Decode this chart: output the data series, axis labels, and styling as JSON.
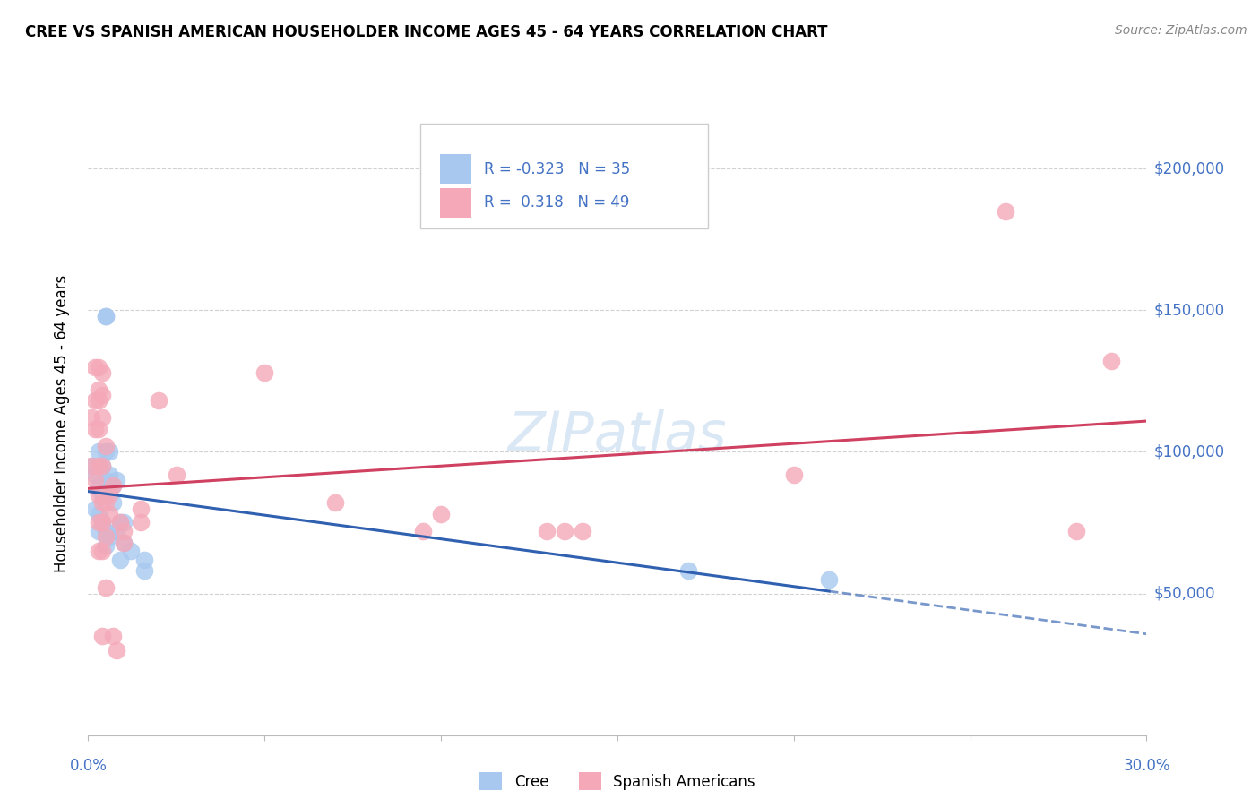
{
  "title": "CREE VS SPANISH AMERICAN HOUSEHOLDER INCOME AGES 45 - 64 YEARS CORRELATION CHART",
  "source": "Source: ZipAtlas.com",
  "ylabel": "Householder Income Ages 45 - 64 years",
  "xlim": [
    0.0,
    0.3
  ],
  "ylim": [
    0,
    220000
  ],
  "yticks": [
    50000,
    100000,
    150000,
    200000
  ],
  "ytick_labels": [
    "$50,000",
    "$100,000",
    "$150,000",
    "$200,000"
  ],
  "cree_color": "#A8C8F0",
  "spanish_color": "#F4A8B8",
  "cree_line_color": "#3060B0",
  "spanish_line_color": "#D04060",
  "cree_points": [
    [
      0.001,
      95000
    ],
    [
      0.002,
      92000
    ],
    [
      0.002,
      80000
    ],
    [
      0.003,
      100000
    ],
    [
      0.003,
      88000
    ],
    [
      0.003,
      78000
    ],
    [
      0.003,
      72000
    ],
    [
      0.004,
      95000
    ],
    [
      0.004,
      85000
    ],
    [
      0.004,
      75000
    ],
    [
      0.005,
      148000
    ],
    [
      0.005,
      148000
    ],
    [
      0.005,
      100000
    ],
    [
      0.005,
      90000
    ],
    [
      0.005,
      72000
    ],
    [
      0.005,
      67000
    ],
    [
      0.006,
      100000
    ],
    [
      0.006,
      92000
    ],
    [
      0.006,
      70000
    ],
    [
      0.007,
      88000
    ],
    [
      0.007,
      82000
    ],
    [
      0.008,
      90000
    ],
    [
      0.008,
      72000
    ],
    [
      0.009,
      75000
    ],
    [
      0.009,
      62000
    ],
    [
      0.01,
      75000
    ],
    [
      0.01,
      68000
    ],
    [
      0.012,
      65000
    ],
    [
      0.016,
      62000
    ],
    [
      0.016,
      58000
    ],
    [
      0.17,
      58000
    ],
    [
      0.21,
      55000
    ]
  ],
  "spanish_points": [
    [
      0.001,
      112000
    ],
    [
      0.001,
      95000
    ],
    [
      0.002,
      130000
    ],
    [
      0.002,
      118000
    ],
    [
      0.002,
      108000
    ],
    [
      0.002,
      90000
    ],
    [
      0.003,
      130000
    ],
    [
      0.003,
      122000
    ],
    [
      0.003,
      118000
    ],
    [
      0.003,
      108000
    ],
    [
      0.003,
      95000
    ],
    [
      0.003,
      85000
    ],
    [
      0.003,
      75000
    ],
    [
      0.003,
      65000
    ],
    [
      0.004,
      128000
    ],
    [
      0.004,
      120000
    ],
    [
      0.004,
      112000
    ],
    [
      0.004,
      95000
    ],
    [
      0.004,
      82000
    ],
    [
      0.004,
      75000
    ],
    [
      0.004,
      65000
    ],
    [
      0.004,
      35000
    ],
    [
      0.005,
      102000
    ],
    [
      0.005,
      82000
    ],
    [
      0.005,
      70000
    ],
    [
      0.005,
      52000
    ],
    [
      0.006,
      85000
    ],
    [
      0.006,
      78000
    ],
    [
      0.007,
      88000
    ],
    [
      0.007,
      35000
    ],
    [
      0.008,
      30000
    ],
    [
      0.009,
      75000
    ],
    [
      0.01,
      72000
    ],
    [
      0.01,
      68000
    ],
    [
      0.015,
      80000
    ],
    [
      0.015,
      75000
    ],
    [
      0.02,
      118000
    ],
    [
      0.025,
      92000
    ],
    [
      0.05,
      128000
    ],
    [
      0.07,
      82000
    ],
    [
      0.095,
      72000
    ],
    [
      0.1,
      78000
    ],
    [
      0.13,
      72000
    ],
    [
      0.135,
      72000
    ],
    [
      0.14,
      72000
    ],
    [
      0.2,
      92000
    ],
    [
      0.26,
      185000
    ],
    [
      0.28,
      72000
    ],
    [
      0.29,
      132000
    ]
  ]
}
